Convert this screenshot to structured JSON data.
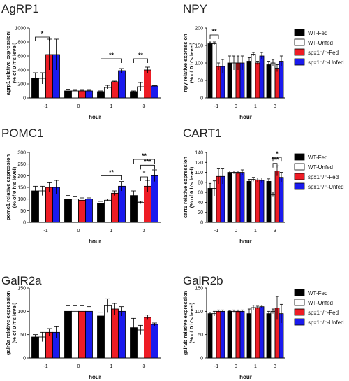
{
  "colors": {
    "wt_fed": "#000000",
    "wt_unfed": "#ffffff",
    "spx_fed": "#ee1c25",
    "spx_unfed": "#1a1aee"
  },
  "ylabel_sub": "(% of 0 h's level)",
  "chart_data": [
    {
      "type": "bar",
      "title": "AgRP1",
      "ylabel": "agrp1 relative expressioni",
      "xlabel": "hour",
      "categories": [
        "-1",
        "0",
        "1",
        "3"
      ],
      "ylim": [
        0,
        1000
      ],
      "yticks": [
        "0",
        "200",
        "400",
        "600",
        "800",
        "1000"
      ],
      "series": [
        {
          "values": [
            280,
            100,
            90,
            90
          ],
          "errors": [
            80,
            15,
            10,
            10
          ]
        },
        {
          "values": [
            280,
            100,
            150,
            160
          ],
          "errors": [
            80,
            10,
            30,
            60
          ]
        },
        {
          "values": [
            620,
            100,
            230,
            400
          ],
          "errors": [
            220,
            10,
            10,
            40
          ]
        },
        {
          "values": [
            620,
            100,
            390,
            170
          ],
          "errors": [
            220,
            10,
            30,
            5
          ]
        }
      ],
      "annotations": [
        {
          "label": "*",
          "cat_from": 0,
          "series_from": 0,
          "cat_to": 0,
          "series_to": 2,
          "y": 870
        },
        {
          "label": "**",
          "cat_from": 2,
          "series_from": 0,
          "cat_to": 2,
          "series_to": 3,
          "y": 560
        },
        {
          "label": "**",
          "cat_from": 3,
          "series_from": 0,
          "cat_to": 3,
          "series_to": 2,
          "y": 560
        }
      ]
    },
    {
      "type": "bar",
      "title": "NPY",
      "ylabel": "npy relative expression",
      "xlabel": "hour",
      "categories": [
        "-1",
        "0",
        "1",
        "3"
      ],
      "ylim": [
        0,
        200
      ],
      "yticks": [
        "0",
        "50",
        "100",
        "150",
        "200"
      ],
      "legend": [
        "WT-Fed",
        "WT-Unfed",
        "spx1⁻/⁻-Fed",
        "spx1⁻/⁻-Unfed"
      ],
      "series": [
        {
          "values": [
            155,
            100,
            105,
            95
          ],
          "errors": [
            5,
            20,
            10,
            10
          ]
        },
        {
          "values": [
            155,
            100,
            125,
            100
          ],
          "errors": [
            5,
            20,
            5,
            10
          ]
        },
        {
          "values": [
            90,
            100,
            100,
            85
          ],
          "errors": [
            10,
            20,
            5,
            10
          ]
        },
        {
          "values": [
            90,
            100,
            120,
            105
          ],
          "errors": [
            20,
            20,
            10,
            15
          ]
        }
      ],
      "annotations": [
        {
          "label": "**",
          "cat_from": 0,
          "series_from": 0,
          "cat_to": 0,
          "series_to": 2,
          "y": 180
        }
      ]
    },
    {
      "type": "bar",
      "title": "POMC1",
      "ylabel": "pomc1 relative expression",
      "xlabel": "hour",
      "categories": [
        "-1",
        "0",
        "1",
        "3"
      ],
      "ylim": [
        0,
        300
      ],
      "yticks": [
        "0",
        "50",
        "100",
        "150",
        "200",
        "250",
        "300"
      ],
      "series": [
        {
          "values": [
            135,
            100,
            80,
            115
          ],
          "errors": [
            20,
            15,
            10,
            20
          ]
        },
        {
          "values": [
            135,
            100,
            95,
            85
          ],
          "errors": [
            20,
            10,
            5,
            5
          ]
        },
        {
          "values": [
            150,
            95,
            125,
            155
          ],
          "errors": [
            20,
            10,
            10,
            25
          ]
        },
        {
          "values": [
            150,
            100,
            155,
            200
          ],
          "errors": [
            30,
            5,
            20,
            25
          ]
        }
      ],
      "annotations": [
        {
          "label": "**",
          "cat_from": 2,
          "series_from": 0,
          "cat_to": 2,
          "series_to": 3,
          "y": 200
        },
        {
          "label": "*",
          "cat_from": 3,
          "series_from": 1,
          "cat_to": 3,
          "series_to": 2,
          "y": 195
        },
        {
          "label": "***",
          "cat_from": 3,
          "series_from": 1,
          "cat_to": 3,
          "series_to": 3,
          "y": 245
        },
        {
          "label": "**",
          "cat_from": 3,
          "series_from": 0,
          "cat_to": 3,
          "series_to": 3,
          "y": 270
        }
      ]
    },
    {
      "type": "bar",
      "title": "CART1",
      "ylabel": "cart1 relative expression",
      "xlabel": "hour",
      "categories": [
        "-1",
        "0",
        "1",
        "3"
      ],
      "ylim": [
        0,
        140
      ],
      "yticks": [
        "0",
        "20",
        "40",
        "60",
        "80",
        "100",
        "120",
        "140"
      ],
      "legend": [
        "WT-Fed",
        "WT-Unfed",
        "spx1⁻/⁻-Fed",
        "spx1⁻/⁻-Unfed"
      ],
      "series": [
        {
          "values": [
            68,
            100,
            82,
            82
          ],
          "errors": [
            10,
            3,
            4,
            5
          ]
        },
        {
          "values": [
            68,
            100,
            86,
            55
          ],
          "errors": [
            15,
            3,
            4,
            4
          ]
        },
        {
          "values": [
            92,
            100,
            85,
            103
          ],
          "errors": [
            15,
            3,
            4,
            10
          ]
        },
        {
          "values": [
            92,
            100,
            84,
            90
          ],
          "errors": [
            15,
            5,
            5,
            10
          ]
        }
      ],
      "annotations": [
        {
          "label": "***",
          "cat_from": 3,
          "series_from": 1,
          "cat_to": 3,
          "series_to": 2,
          "y": 118
        },
        {
          "label": "*",
          "cat_from": 3,
          "series_from": 1,
          "cat_to": 3,
          "series_to": 3,
          "y": 130
        }
      ]
    },
    {
      "type": "bar",
      "title": "GalR2a",
      "ylabel": "galr2a relative expression",
      "xlabel": "hour",
      "categories": [
        "-1",
        "0",
        "1",
        "3"
      ],
      "ylim": [
        0,
        150
      ],
      "yticks": [
        "0",
        "50",
        "100",
        "150"
      ],
      "series": [
        {
          "values": [
            45,
            100,
            90,
            65
          ],
          "errors": [
            5,
            12,
            8,
            20
          ]
        },
        {
          "values": [
            45,
            100,
            112,
            60
          ],
          "errors": [
            10,
            12,
            15,
            10
          ]
        },
        {
          "values": [
            55,
            100,
            105,
            87
          ],
          "errors": [
            8,
            12,
            12,
            5
          ]
        },
        {
          "values": [
            55,
            100,
            100,
            72
          ],
          "errors": [
            12,
            10,
            10,
            3
          ]
        }
      ]
    },
    {
      "type": "bar",
      "title": "GalR2b",
      "ylabel": "galr2b relative expression",
      "xlabel": "hour",
      "categories": [
        "-1",
        "0",
        "1",
        "3"
      ],
      "ylim": [
        0,
        150
      ],
      "yticks": [
        "0",
        "50",
        "100",
        "150"
      ],
      "legend": [
        "WT-Fed",
        "WT-Unfed",
        "spx1⁻/⁻-Fed",
        "spx1⁻/⁻-Unfed"
      ],
      "series": [
        {
          "values": [
            95,
            100,
            95,
            95
          ],
          "errors": [
            3,
            2,
            10,
            5
          ]
        },
        {
          "values": [
            95,
            100,
            108,
            100
          ],
          "errors": [
            5,
            3,
            5,
            5
          ]
        },
        {
          "values": [
            100,
            100,
            108,
            107
          ],
          "errors": [
            3,
            3,
            3,
            25
          ]
        },
        {
          "values": [
            100,
            100,
            110,
            95
          ],
          "errors": [
            3,
            3,
            3,
            20
          ]
        }
      ]
    }
  ]
}
